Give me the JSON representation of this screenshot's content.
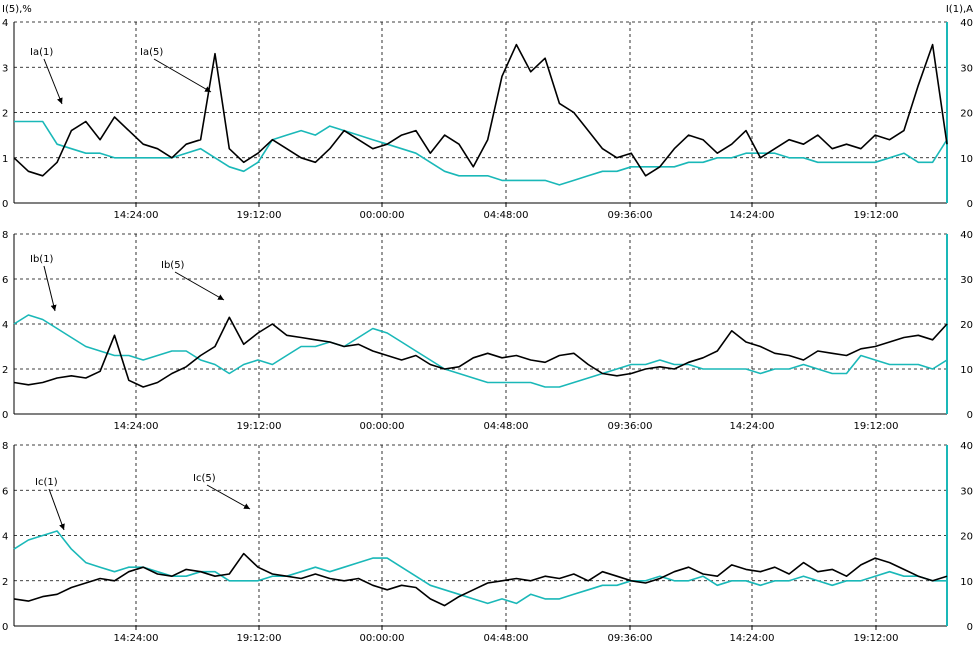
{
  "chart_data": {
    "type": "line",
    "left_axis_label": "I(5),%",
    "right_axis_label": "I(1),A",
    "colors": {
      "black_series": "#000000",
      "cyan_series": "#1ab8b8",
      "axis": "#1ab8b8"
    },
    "x_tick_labels": [
      "14:24:00",
      "19:12:00",
      "00:00:00",
      "04:48:00",
      "09:36:00",
      "14:24:00",
      "19:12:00"
    ],
    "grid": "dashed",
    "panels": [
      {
        "left_ylim": [
          0,
          4
        ],
        "left_ticks": [
          "0",
          "1",
          "2",
          "3",
          "4"
        ],
        "right_ylim": [
          0,
          40
        ],
        "right_ticks": [
          "0",
          "10",
          "20",
          "30",
          "40"
        ],
        "annotations": [
          {
            "text": "Ia(1)",
            "series": "I(1)"
          },
          {
            "text": "Ia(5)",
            "series": "I(5)"
          }
        ],
        "series": [
          {
            "axis": "left",
            "values": [
              1.0,
              0.7,
              0.6,
              0.9,
              1.6,
              1.8,
              1.4,
              1.9,
              1.6,
              1.3,
              1.2,
              1.0,
              1.3,
              1.4,
              3.3,
              1.2,
              0.9,
              1.1,
              1.4,
              1.2,
              1.0,
              0.9,
              1.2,
              1.6,
              1.4,
              1.2,
              1.3,
              1.5,
              1.6,
              1.1,
              1.5,
              1.3,
              0.8,
              1.4,
              2.8,
              3.5,
              2.9,
              3.2,
              2.2,
              2.0,
              1.6,
              1.2,
              1.0,
              1.1,
              0.6,
              0.8,
              1.2,
              1.5,
              1.4,
              1.1,
              1.3,
              1.6,
              1.0,
              1.2,
              1.4,
              1.3,
              1.5,
              1.2,
              1.3,
              1.2,
              1.5,
              1.4,
              1.6,
              2.6,
              3.5,
              1.3
            ]
          },
          {
            "axis": "right",
            "values": [
              18,
              18,
              18,
              13,
              12,
              11,
              11,
              10,
              10,
              10,
              10,
              10,
              11,
              12,
              10,
              8,
              7,
              9,
              14,
              15,
              16,
              15,
              17,
              16,
              15,
              14,
              13,
              12,
              11,
              9,
              7,
              6,
              6,
              6,
              5,
              5,
              5,
              5,
              4,
              5,
              6,
              7,
              7,
              8,
              8,
              8,
              8,
              9,
              9,
              10,
              10,
              11,
              11,
              11,
              10,
              10,
              9,
              9,
              9,
              9,
              9,
              10,
              11,
              9,
              9,
              14
            ]
          }
        ]
      },
      {
        "left_ylim": [
          0,
          8
        ],
        "left_ticks": [
          "0",
          "2",
          "4",
          "6",
          "8"
        ],
        "right_ylim": [
          0,
          40
        ],
        "right_ticks": [
          "0",
          "10",
          "20",
          "30",
          "40"
        ],
        "annotations": [
          {
            "text": "Ib(1)",
            "series": "I(1)"
          },
          {
            "text": "Ib(5)",
            "series": "I(5)"
          }
        ],
        "series": [
          {
            "axis": "left",
            "values": [
              1.4,
              1.3,
              1.4,
              1.6,
              1.7,
              1.6,
              1.9,
              3.5,
              1.5,
              1.2,
              1.4,
              1.8,
              2.1,
              2.6,
              3.0,
              4.3,
              3.1,
              3.6,
              4.0,
              3.5,
              3.4,
              3.3,
              3.2,
              3.0,
              3.1,
              2.8,
              2.6,
              2.4,
              2.6,
              2.2,
              2.0,
              2.1,
              2.5,
              2.7,
              2.5,
              2.6,
              2.4,
              2.3,
              2.6,
              2.7,
              2.2,
              1.8,
              1.7,
              1.8,
              2.0,
              2.1,
              2.0,
              2.3,
              2.5,
              2.8,
              3.7,
              3.2,
              3.0,
              2.7,
              2.6,
              2.4,
              2.8,
              2.7,
              2.6,
              2.9,
              3.0,
              3.2,
              3.4,
              3.5,
              3.3,
              4.0
            ]
          },
          {
            "axis": "right",
            "values": [
              20,
              22,
              21,
              19,
              17,
              15,
              14,
              13,
              13,
              12,
              13,
              14,
              14,
              12,
              11,
              9,
              11,
              12,
              11,
              13,
              15,
              15,
              16,
              15,
              17,
              19,
              18,
              16,
              14,
              12,
              10,
              9,
              8,
              7,
              7,
              7,
              7,
              6,
              6,
              7,
              8,
              9,
              10,
              11,
              11,
              12,
              11,
              11,
              10,
              10,
              10,
              10,
              9,
              10,
              10,
              11,
              10,
              9,
              9,
              13,
              12,
              11,
              11,
              11,
              10,
              12
            ]
          }
        ]
      },
      {
        "left_ylim": [
          0,
          8
        ],
        "left_ticks": [
          "0",
          "2",
          "4",
          "6",
          "8"
        ],
        "right_ylim": [
          0,
          40
        ],
        "right_ticks": [
          "0",
          "10",
          "20",
          "30",
          "40"
        ],
        "annotations": [
          {
            "text": "Ic(1)",
            "series": "I(1)"
          },
          {
            "text": "Ic(5)",
            "series": "I(5)"
          }
        ],
        "series": [
          {
            "axis": "left",
            "values": [
              1.2,
              1.1,
              1.3,
              1.4,
              1.7,
              1.9,
              2.1,
              2.0,
              2.4,
              2.6,
              2.3,
              2.2,
              2.5,
              2.4,
              2.2,
              2.3,
              3.2,
              2.6,
              2.3,
              2.2,
              2.1,
              2.3,
              2.1,
              2.0,
              2.1,
              1.8,
              1.6,
              1.8,
              1.7,
              1.2,
              0.9,
              1.3,
              1.6,
              1.9,
              2.0,
              2.1,
              2.0,
              2.2,
              2.1,
              2.3,
              2.0,
              2.4,
              2.2,
              2.0,
              1.9,
              2.1,
              2.4,
              2.6,
              2.3,
              2.2,
              2.7,
              2.5,
              2.4,
              2.6,
              2.3,
              2.8,
              2.4,
              2.5,
              2.2,
              2.7,
              3.0,
              2.8,
              2.5,
              2.2,
              2.0,
              2.2
            ]
          },
          {
            "axis": "right",
            "values": [
              17,
              19,
              20,
              21,
              17,
              14,
              13,
              12,
              13,
              13,
              12,
              11,
              11,
              12,
              12,
              10,
              10,
              10,
              11,
              11,
              12,
              13,
              12,
              13,
              14,
              15,
              15,
              13,
              11,
              9,
              8,
              7,
              6,
              5,
              6,
              5,
              7,
              6,
              6,
              7,
              8,
              9,
              9,
              10,
              10,
              11,
              10,
              10,
              11,
              9,
              10,
              10,
              9,
              10,
              10,
              11,
              10,
              9,
              10,
              10,
              11,
              12,
              11,
              11,
              10,
              10
            ]
          }
        ]
      }
    ]
  }
}
